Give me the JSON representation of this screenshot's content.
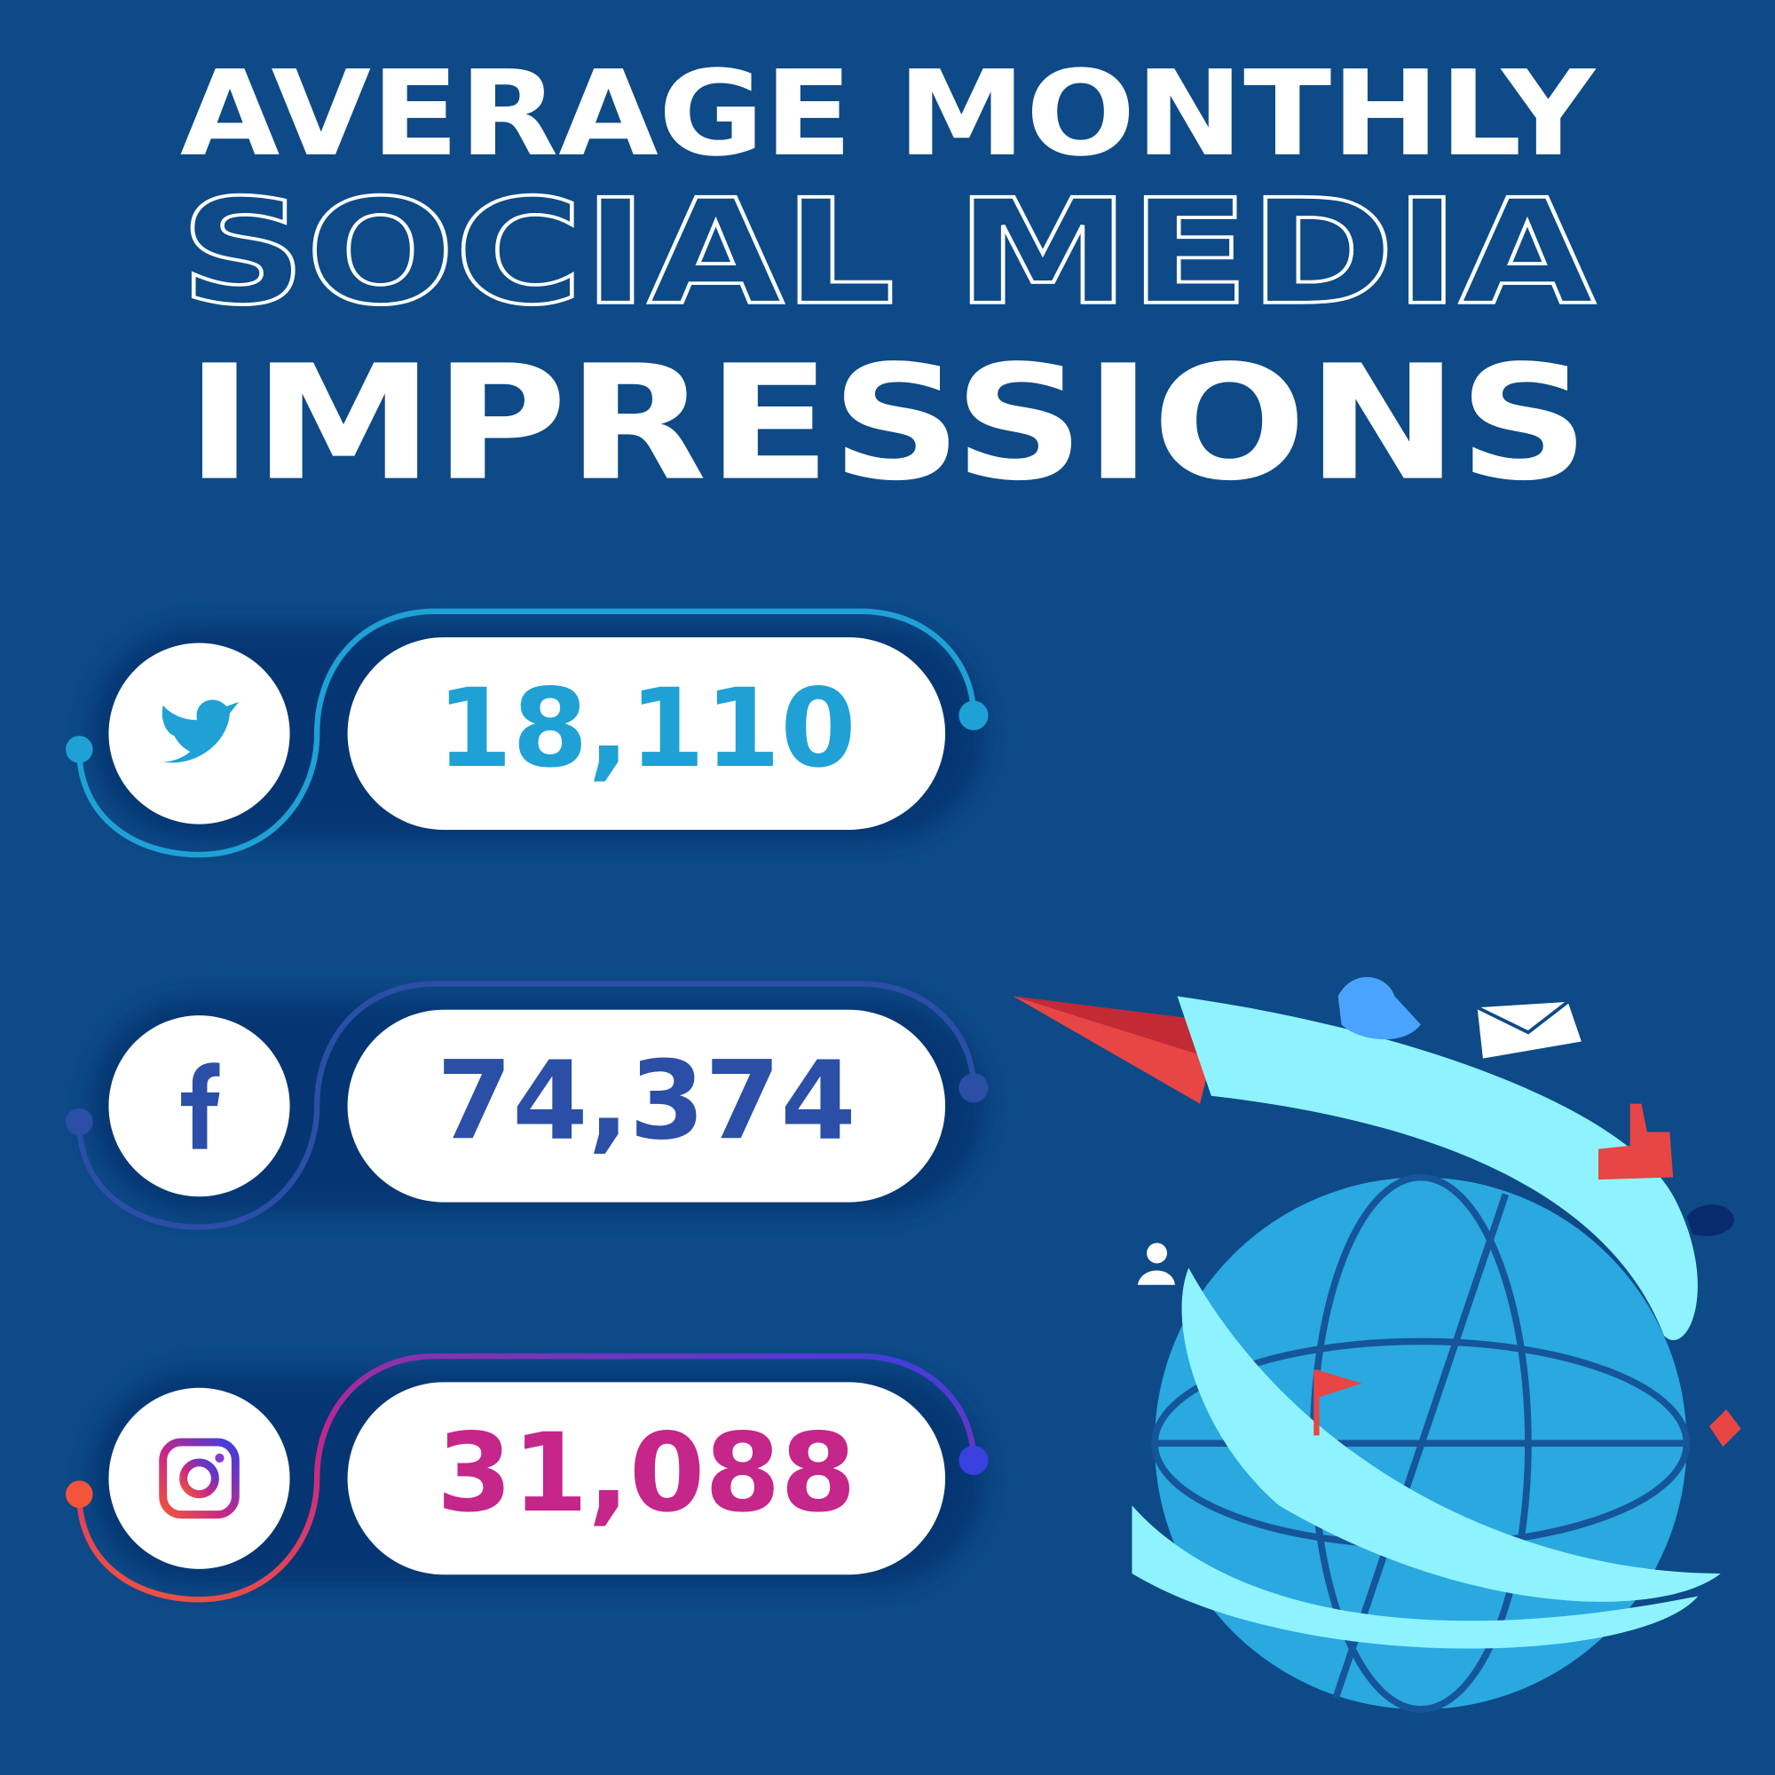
{
  "header": {
    "lines": [
      "AVERAGE MONTHLY",
      "SOCIAL MEDIA",
      "IMPRESSIONS"
    ]
  },
  "items": [
    {
      "value": "18,110",
      "color": "#1fa1d6"
    },
    {
      "value": "74,374",
      "color": "#2b4ea6"
    },
    {
      "value": "31,088",
      "color": "#c4268a"
    }
  ]
}
